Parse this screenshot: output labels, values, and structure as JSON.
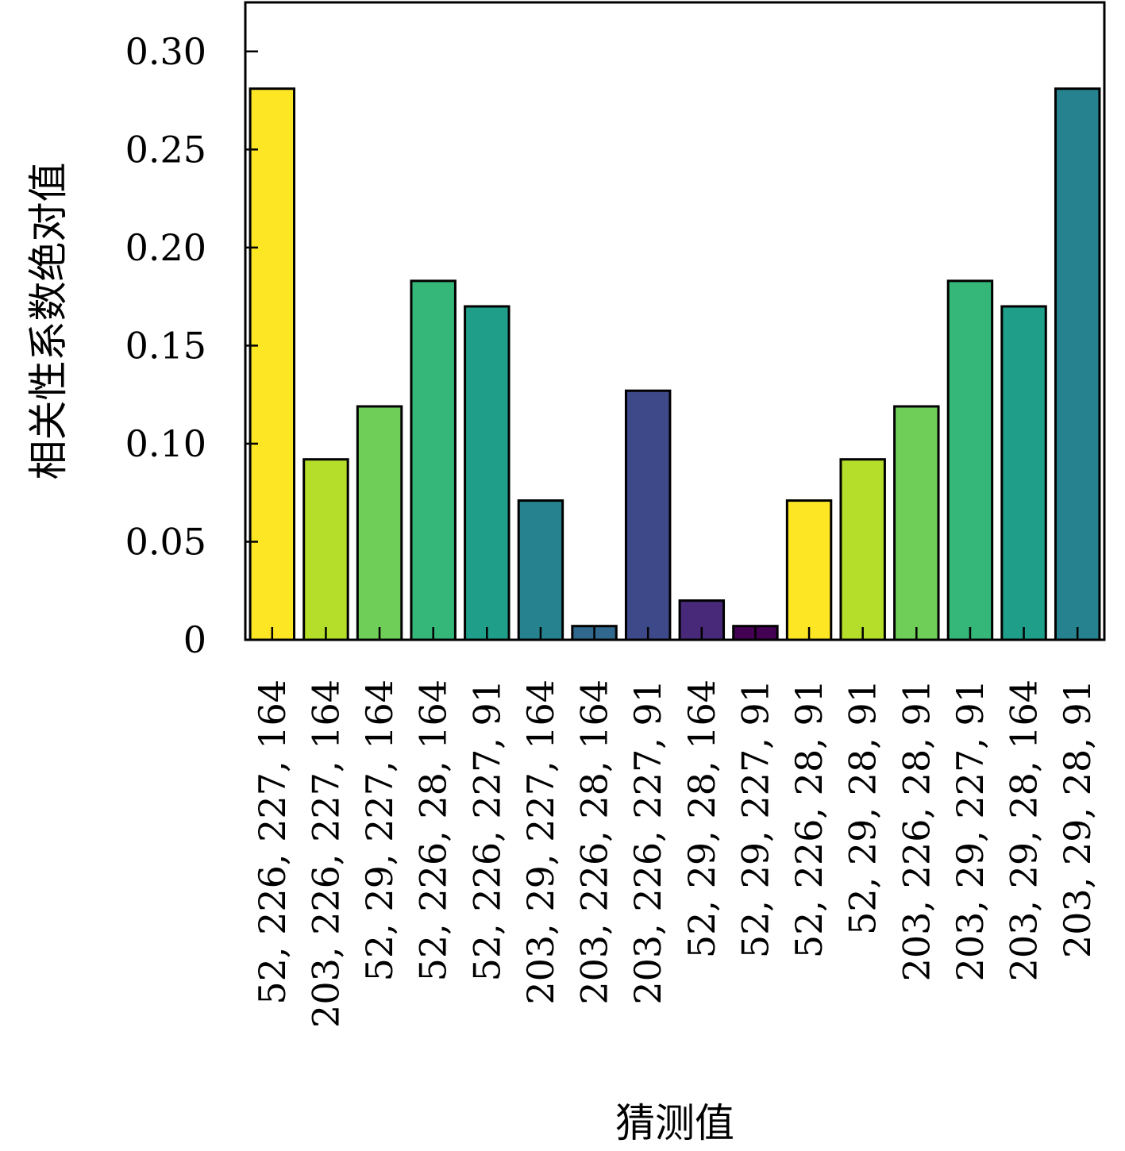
{
  "chart_data": {
    "type": "bar",
    "xlabel": "猜测值",
    "ylabel": "相关性系数绝对值",
    "ylim": [
      0,
      0.325
    ],
    "yticks": [
      0,
      0.05,
      0.1,
      0.15,
      0.2,
      0.25,
      0.3
    ],
    "ytick_labels": [
      "0",
      "0.05",
      "0.10",
      "0.15",
      "0.20",
      "0.25",
      "0.30"
    ],
    "grid": false,
    "categories": [
      "52, 226, 227, 164",
      "203, 226, 227, 164",
      "52, 29, 227, 164",
      "52, 226, 28, 164",
      "52, 226, 227, 91",
      "203, 29, 227, 164",
      "203, 226, 28, 164",
      "203, 226, 227, 91",
      "52, 29, 28, 164",
      "52, 29, 227, 91",
      "52, 226, 28, 91",
      "52, 29, 28, 91",
      "203, 226, 28, 91",
      "203, 29, 227, 91",
      "203, 29, 28, 164",
      "203, 29, 28, 91"
    ],
    "values": [
      0.281,
      0.092,
      0.119,
      0.183,
      0.17,
      0.071,
      0.007,
      0.127,
      0.02,
      0.007,
      0.071,
      0.092,
      0.119,
      0.183,
      0.17,
      0.281
    ],
    "colors": [
      "#fde725",
      "#b5de2b",
      "#6ece58",
      "#35b779",
      "#1f9e89",
      "#26828e",
      "#31688e",
      "#3e4989",
      "#482878",
      "#440154",
      "#fde725",
      "#b5de2b",
      "#6ece58",
      "#35b779",
      "#1f9e89",
      "#26828e"
    ]
  }
}
